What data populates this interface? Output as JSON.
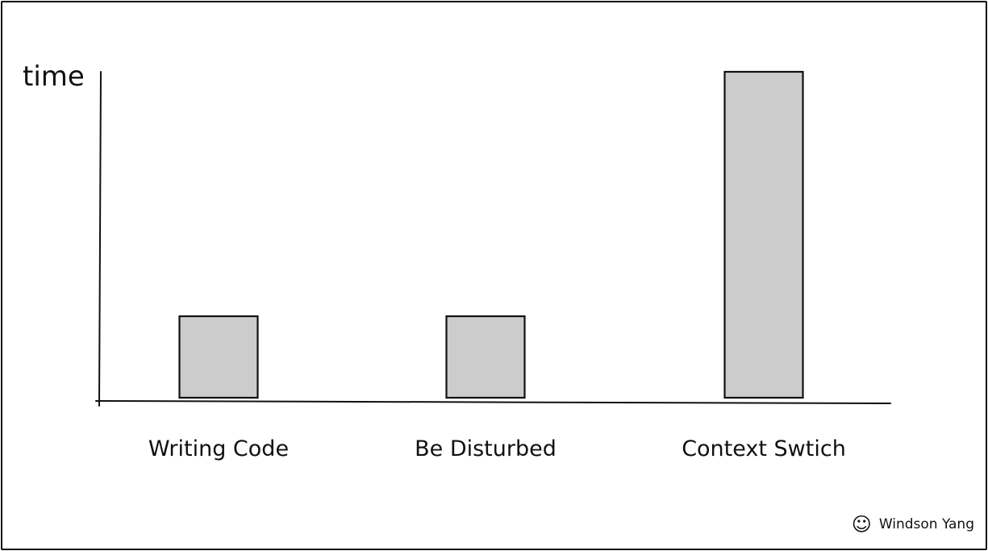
{
  "chart_data": {
    "type": "bar",
    "ylabel": "time",
    "xlabel": "",
    "title": "",
    "categories": [
      "Writing Code",
      "Be Disturbed",
      "Context Swtich"
    ],
    "values": [
      1,
      1,
      4
    ],
    "ylim": [
      0,
      4
    ],
    "grid": false,
    "bar_color": "#cccccc",
    "edge_color": "#111111"
  },
  "credit": {
    "icon": "smiley-icon",
    "glyph": "☺",
    "author": "Windson Yang"
  }
}
